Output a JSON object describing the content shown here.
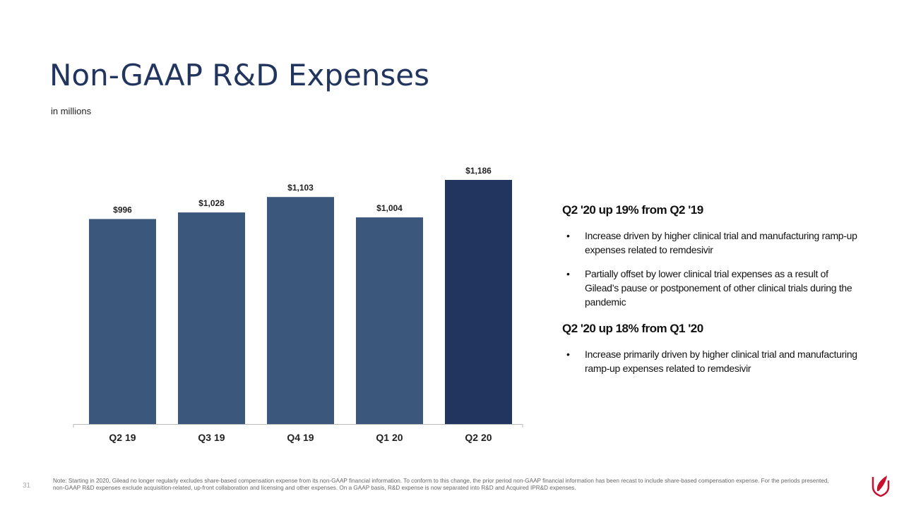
{
  "title": "Non-GAAP R&D Expenses",
  "subtitle": "in millions",
  "chart_data": {
    "type": "bar",
    "categories": [
      "Q2 19",
      "Q3 19",
      "Q4 19",
      "Q1 20",
      "Q2 20"
    ],
    "values": [
      996,
      1028,
      1103,
      1004,
      1186
    ],
    "data_labels": [
      "$996",
      "$1,028",
      "$1,103",
      "$1,004",
      "$1,186"
    ],
    "ylim": [
      0,
      1300
    ],
    "grid": false,
    "colors": {
      "bar": "#3b587c",
      "highlight": "#22355e"
    },
    "highlight_index": 4
  },
  "commentary": [
    {
      "heading": "Q2 '20 up 19% from Q2 '19",
      "bullets": [
        "Increase driven by higher clinical trial and manufacturing ramp-up expenses related to remdesivir",
        "Partially offset by lower clinical trial expenses as a result of Gilead’s pause or postponement of other clinical trials during the pandemic"
      ]
    },
    {
      "heading": "Q2 '20 up 18% from Q1 '20",
      "bullets": [
        "Increase primarily driven by higher clinical trial and manufacturing ramp-up expenses related to remdesivir"
      ]
    }
  ],
  "note": "Note: Starting in 2020, Gilead no longer regularly excludes share-based compensation expense from its non-GAAP financial information. To conform to this change, the prior period non-GAAP financial information has been recast to include share-based compensation expense. For the periods presented, non-GAAP R&D expenses exclude acquisition-related, up-front collaboration and licensing and other expenses. On a GAAP basis, R&D expense is now separated into R&D and Acquired IPR&D expenses.",
  "page_number": "31",
  "logo_color": "#c8102e"
}
